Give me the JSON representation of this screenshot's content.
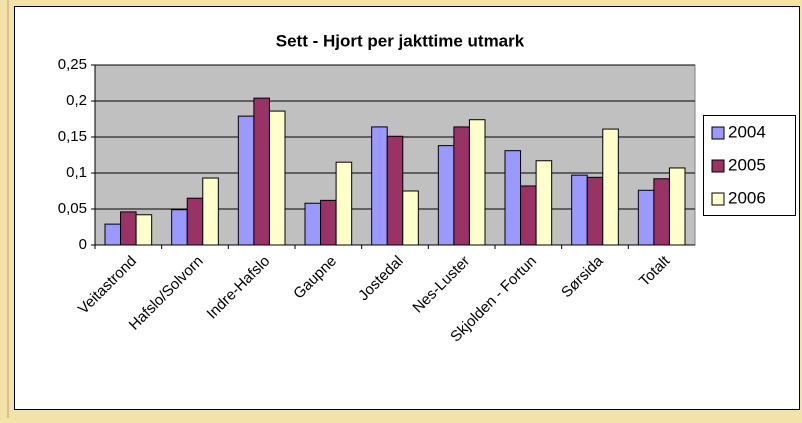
{
  "chart_data": {
    "type": "bar",
    "title": "Sett - Hjort per jakttime utmark",
    "categories": [
      "Veitastrond",
      "Hafslo/Solvorn",
      "Indre-Hafslo",
      "Gaupne",
      "Jostedal",
      "Nes-Luster",
      "Skjolden - Fortun",
      "Sørsida",
      "Totalt"
    ],
    "series": [
      {
        "name": "2004",
        "color": "#9999ff",
        "values": [
          0.029,
          0.049,
          0.179,
          0.058,
          0.164,
          0.138,
          0.131,
          0.097,
          0.076
        ]
      },
      {
        "name": "2005",
        "color": "#993366",
        "values": [
          0.046,
          0.065,
          0.204,
          0.062,
          0.151,
          0.164,
          0.082,
          0.094,
          0.092
        ]
      },
      {
        "name": "2006",
        "color": "#ffffcc",
        "values": [
          0.042,
          0.093,
          0.186,
          0.115,
          0.075,
          0.174,
          0.117,
          0.161,
          0.107
        ]
      }
    ],
    "ylim": [
      0,
      0.25
    ],
    "yticks": [
      0,
      {
        "value": 0.05,
        "label": "0,05"
      },
      {
        "value": 0.1,
        "label": "0,1"
      },
      {
        "value": 0.15,
        "label": "0,15"
      },
      {
        "value": 0.2,
        "label": "0,2"
      },
      {
        "value": 0.25,
        "label": "0,25"
      }
    ],
    "grid": true,
    "legend": "right"
  }
}
